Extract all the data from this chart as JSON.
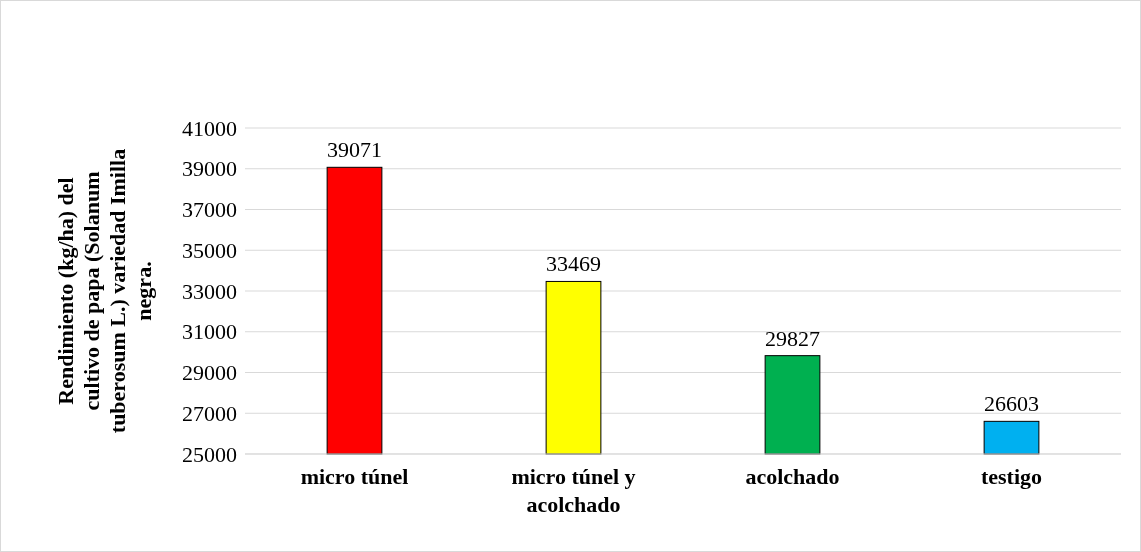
{
  "chart_data": {
    "type": "bar",
    "ylabel": "Rendimiento (kg/ha) del cultivo de papa (Solanum tuberosum L.) variedad Imilla negra.",
    "categories": [
      "micro túnel",
      "micro túnel y acolchado",
      "acolchado",
      "testigo"
    ],
    "values": [
      39071,
      33469,
      29827,
      26603
    ],
    "colors": [
      "#ff0000",
      "#ffff00",
      "#00b050",
      "#00b0f0"
    ],
    "ylim": [
      25000,
      41000
    ],
    "yticks": [
      25000,
      27000,
      29000,
      31000,
      33000,
      35000,
      37000,
      39000,
      41000
    ],
    "grid": "y",
    "data_labels": true
  }
}
